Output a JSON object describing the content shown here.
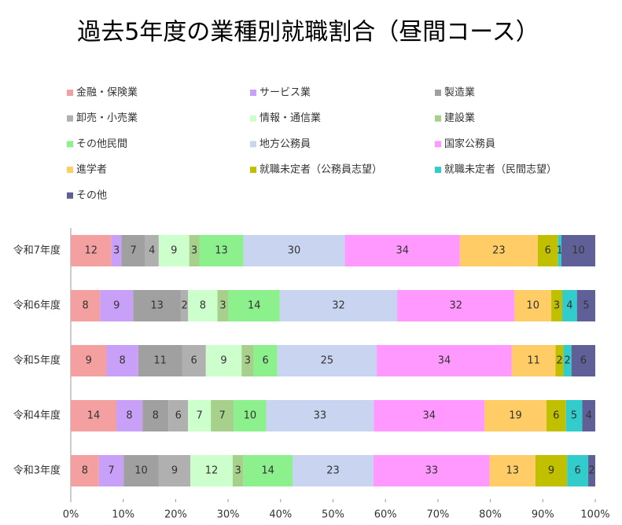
{
  "chart_data": {
    "type": "bar",
    "orientation": "horizontal",
    "stacking": "percent",
    "title": "過去5年度の業種別就職割合（昼間コース）",
    "categories": [
      "令和7年度",
      "令和6年度",
      "令和5年度",
      "令和4年度",
      "令和3年度"
    ],
    "series": [
      {
        "name": "金融・保険業",
        "color": "#f4a0a0",
        "values": [
          12,
          8,
          9,
          14,
          8
        ]
      },
      {
        "name": "サービス業",
        "color": "#c8a0f8",
        "values": [
          3,
          9,
          8,
          8,
          7
        ]
      },
      {
        "name": "製造業",
        "color": "#a0a0a0",
        "values": [
          7,
          13,
          11,
          8,
          10
        ]
      },
      {
        "name": "卸売・小売業",
        "color": "#b0b0b0",
        "values": [
          4,
          2,
          6,
          6,
          9
        ]
      },
      {
        "name": "情報・通信業",
        "color": "#ccffcc",
        "values": [
          9,
          8,
          9,
          7,
          12
        ]
      },
      {
        "name": "建設業",
        "color": "#a8d08d",
        "values": [
          3,
          3,
          3,
          7,
          3
        ]
      },
      {
        "name": "その他民間",
        "color": "#8cf08c",
        "values": [
          13,
          14,
          6,
          10,
          14
        ]
      },
      {
        "name": "地方公務員",
        "color": "#c8d4f0",
        "values": [
          30,
          32,
          25,
          33,
          23
        ]
      },
      {
        "name": "国家公務員",
        "color": "#ff99ff",
        "values": [
          34,
          32,
          34,
          34,
          33
        ]
      },
      {
        "name": "進学者",
        "color": "#ffcc66",
        "values": [
          23,
          10,
          11,
          19,
          13
        ]
      },
      {
        "name": "就職未定者（公務員志望）",
        "color": "#c0c000",
        "values": [
          6,
          3,
          2,
          6,
          9
        ]
      },
      {
        "name": "就職未定者（民間志望）",
        "color": "#33cccc",
        "values": [
          1,
          4,
          2,
          5,
          6
        ]
      },
      {
        "name": "その他",
        "color": "#606098",
        "values": [
          10,
          5,
          6,
          4,
          2
        ]
      }
    ],
    "xlim": [
      0,
      100
    ],
    "xticks": [
      {
        "value": 0,
        "label": "0%"
      },
      {
        "value": 10,
        "label": "10%"
      },
      {
        "value": 20,
        "label": "20%"
      },
      {
        "value": 30,
        "label": "30%"
      },
      {
        "value": 40,
        "label": "40%"
      },
      {
        "value": 50,
        "label": "50%"
      },
      {
        "value": 60,
        "label": "60%"
      },
      {
        "value": 70,
        "label": "70%"
      },
      {
        "value": 80,
        "label": "80%"
      },
      {
        "value": 90,
        "label": "90%"
      },
      {
        "value": 100,
        "label": "100%"
      }
    ]
  }
}
